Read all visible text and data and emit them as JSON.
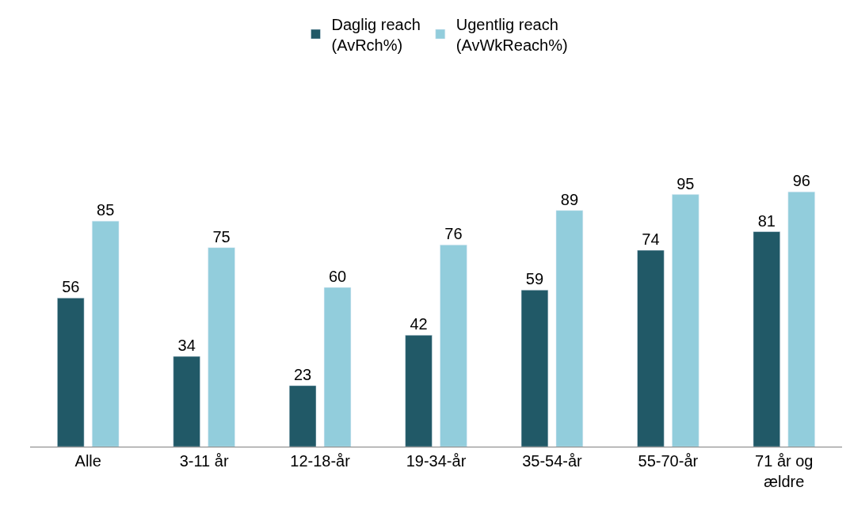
{
  "chart_data": {
    "type": "bar",
    "categories": [
      "Alle",
      "3-11 år",
      "12-18-år",
      "19-34-år",
      "35-54-år",
      "55-70-år",
      "71 år og\nældre"
    ],
    "series": [
      {
        "name": "Daglig reach\n(AvRch%)",
        "color": "#215967",
        "values": [
          56,
          34,
          23,
          42,
          59,
          74,
          81
        ]
      },
      {
        "name": "Ugentlig reach\n(AvWkReach%)",
        "color": "#92cddc",
        "values": [
          85,
          75,
          60,
          76,
          89,
          95,
          96
        ]
      }
    ],
    "data_labels": true,
    "legend": "top"
  }
}
